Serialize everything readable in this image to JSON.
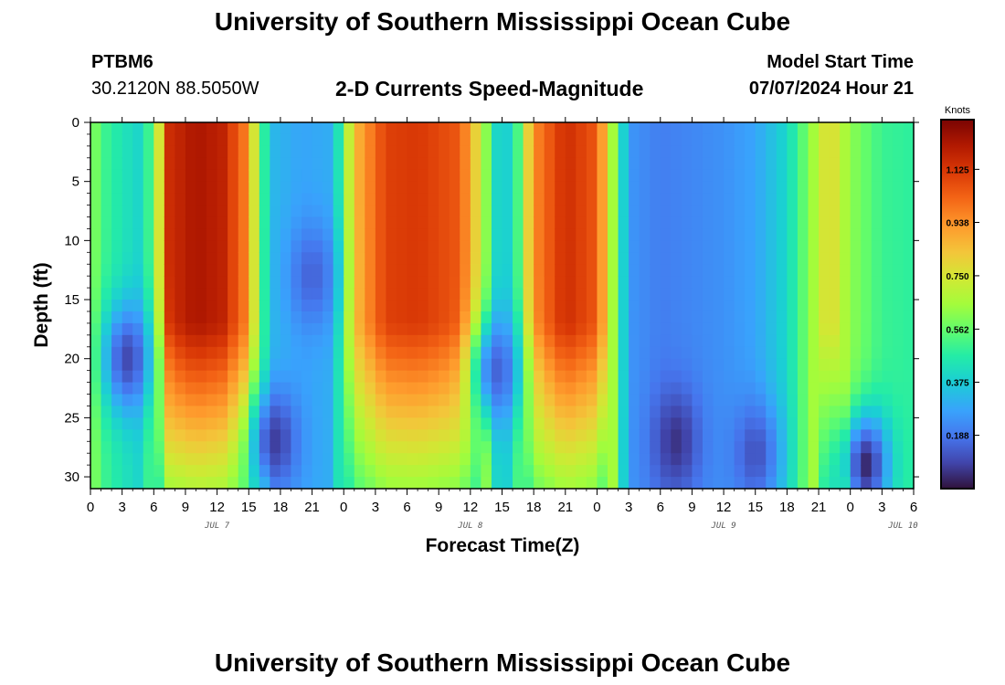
{
  "header": {
    "title": "University of Southern Mississippi Ocean Cube",
    "station_id": "PTBM6",
    "station_coords": "30.2120N  88.5050W",
    "product": "2-D Currents Speed-Magnitude",
    "model_label": "Model Start Time",
    "model_time": "07/07/2024 Hour 21"
  },
  "footer": {
    "title": "University of Southern Mississippi Ocean Cube"
  },
  "chart_data": {
    "type": "heatmap",
    "title": "2-D Currents Speed-Magnitude",
    "xlabel": "Forecast Time(Z)",
    "ylabel": "Depth (ft)",
    "x_range": [
      0,
      78
    ],
    "y_range": [
      0,
      31
    ],
    "x_ticks": [
      {
        "hour": 0,
        "label": "0"
      },
      {
        "hour": 3,
        "label": "3"
      },
      {
        "hour": 6,
        "label": "6"
      },
      {
        "hour": 9,
        "label": "9"
      },
      {
        "hour": 12,
        "label": "12"
      },
      {
        "hour": 15,
        "label": "15"
      },
      {
        "hour": 18,
        "label": "18"
      },
      {
        "hour": 21,
        "label": "21"
      },
      {
        "hour": 24,
        "label": "0"
      },
      {
        "hour": 27,
        "label": "3"
      },
      {
        "hour": 30,
        "label": "6"
      },
      {
        "hour": 33,
        "label": "9"
      },
      {
        "hour": 36,
        "label": "12"
      },
      {
        "hour": 39,
        "label": "15"
      },
      {
        "hour": 42,
        "label": "18"
      },
      {
        "hour": 45,
        "label": "21"
      },
      {
        "hour": 48,
        "label": "0"
      },
      {
        "hour": 51,
        "label": "3"
      },
      {
        "hour": 54,
        "label": "6"
      },
      {
        "hour": 57,
        "label": "9"
      },
      {
        "hour": 60,
        "label": "12"
      },
      {
        "hour": 63,
        "label": "15"
      },
      {
        "hour": 66,
        "label": "18"
      },
      {
        "hour": 69,
        "label": "21"
      },
      {
        "hour": 72,
        "label": "0"
      },
      {
        "hour": 75,
        "label": "3"
      },
      {
        "hour": 78,
        "label": "6"
      }
    ],
    "date_labels": [
      {
        "hour": 12,
        "label": "JUL 7"
      },
      {
        "hour": 36,
        "label": "JUL 8"
      },
      {
        "hour": 60,
        "label": "JUL 9"
      },
      {
        "hour": 77,
        "label": "JUL 10"
      }
    ],
    "y_ticks": [
      0,
      5,
      10,
      15,
      20,
      25,
      30
    ],
    "colorbar": {
      "units": "Knots",
      "range": [
        0,
        1.3
      ],
      "ticks": [
        "1.125",
        "0.938",
        "0.750",
        "0.562",
        "0.375",
        "0.188"
      ],
      "tick_values": [
        1.125,
        0.938,
        0.75,
        0.562,
        0.375,
        0.188
      ]
    },
    "surface_speed_by_hour": [
      [
        0,
        0.62
      ],
      [
        1.5,
        0.5
      ],
      [
        3,
        0.44
      ],
      [
        4.5,
        0.4
      ],
      [
        6,
        0.55
      ],
      [
        7.5,
        1.15
      ],
      [
        10,
        1.22
      ],
      [
        12.5,
        1.18
      ],
      [
        15,
        0.95
      ],
      [
        16,
        0.55
      ],
      [
        17.5,
        0.32
      ],
      [
        20,
        0.28
      ],
      [
        23,
        0.3
      ],
      [
        25,
        0.85
      ],
      [
        28,
        1.1
      ],
      [
        31,
        1.12
      ],
      [
        35,
        1.05
      ],
      [
        37,
        0.72
      ],
      [
        38.5,
        0.4
      ],
      [
        40,
        0.38
      ],
      [
        42,
        0.95
      ],
      [
        45,
        1.15
      ],
      [
        48,
        1.05
      ],
      [
        49.5,
        0.65
      ],
      [
        51,
        0.25
      ],
      [
        54,
        0.2
      ],
      [
        57,
        0.22
      ],
      [
        60,
        0.24
      ],
      [
        63,
        0.28
      ],
      [
        66,
        0.4
      ],
      [
        68,
        0.6
      ],
      [
        70,
        0.8
      ],
      [
        72,
        0.62
      ],
      [
        75,
        0.5
      ],
      [
        78,
        0.48
      ]
    ],
    "subsurface_features": [
      {
        "hour": 3.5,
        "depth": 20,
        "speed": 0.1,
        "kind": "min"
      },
      {
        "hour": 17.5,
        "depth": 27,
        "speed": 0.08,
        "kind": "min"
      },
      {
        "hour": 21,
        "depth": 13,
        "speed": 0.15,
        "kind": "min"
      },
      {
        "hour": 38.5,
        "depth": 21,
        "speed": 0.15,
        "kind": "min"
      },
      {
        "hour": 55.5,
        "depth": 27,
        "speed": 0.06,
        "kind": "min"
      },
      {
        "hour": 63,
        "depth": 28,
        "speed": 0.12,
        "kind": "min"
      },
      {
        "hour": 73.5,
        "depth": 29,
        "speed": 0.04,
        "kind": "min"
      }
    ]
  }
}
